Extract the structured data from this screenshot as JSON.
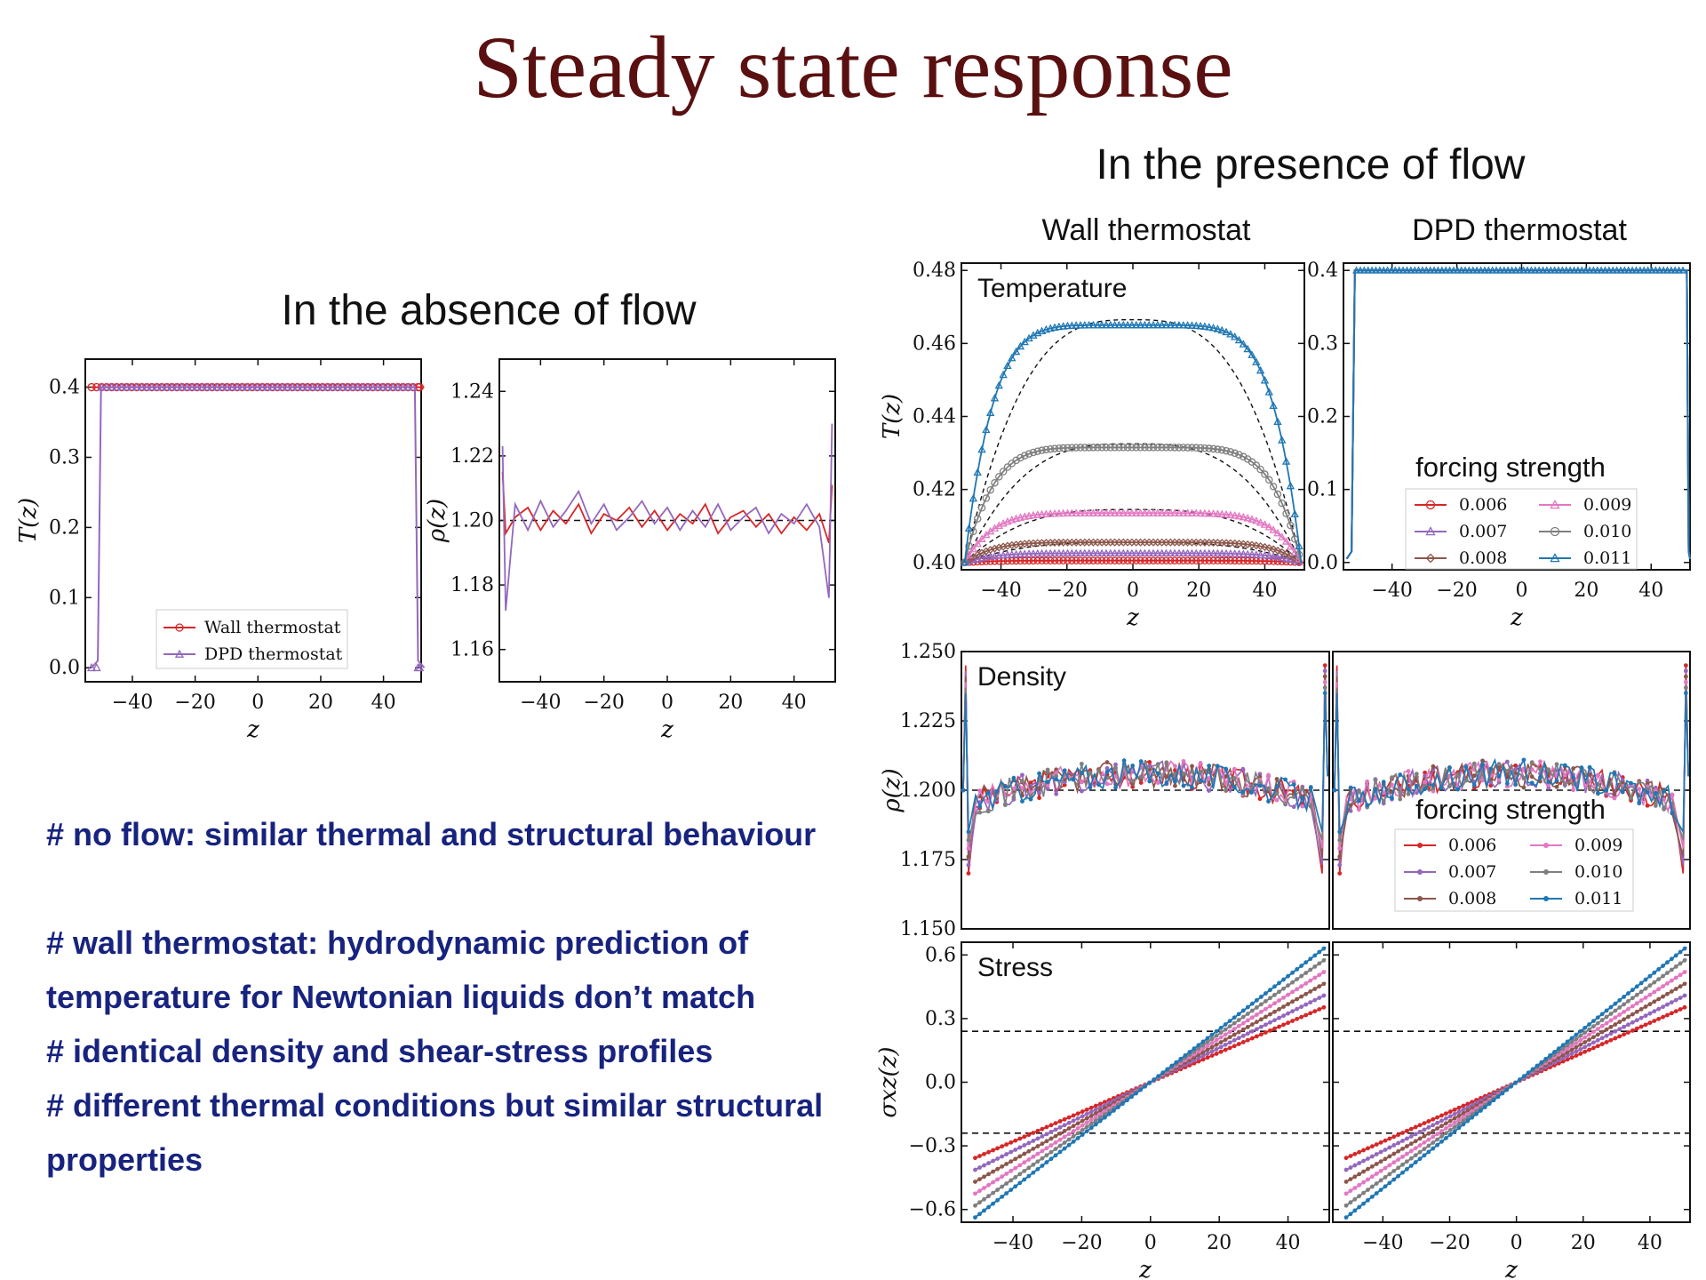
{
  "title": "Steady state response",
  "left_heading": "In the absence of flow",
  "right_heading": "In the presence of flow",
  "col_headings": {
    "wall": "Wall thermostat",
    "dpd": "DPD thermostat"
  },
  "notes": [
    "# no flow: similar thermal and structural behaviour",
    "# wall thermostat: hydrodynamic prediction of",
    "temperature for Newtonian liquids don’t match",
    "# identical density and shear-stress profiles",
    "# different thermal conditions but similar structural",
    "properties"
  ],
  "colors": {
    "title": "#5a1010",
    "notes": "#17237e",
    "series": [
      "#d62728",
      "#9467bd",
      "#8c564b",
      "#e377c2",
      "#7f7f7f",
      "#1f77b4"
    ]
  },
  "chart_data": [
    {
      "id": "noflow-temperature",
      "type": "line",
      "xlabel": "z",
      "ylabel": "T(z)",
      "xlim": [
        -55,
        52
      ],
      "ylim": [
        -0.02,
        0.44
      ],
      "xticks": [
        -40,
        -20,
        0,
        20,
        40
      ],
      "xtick_labels": [
        "−40",
        "−20",
        "0",
        "20",
        "40"
      ],
      "yticks": [
        0.0,
        0.1,
        0.2,
        0.3,
        0.4
      ],
      "ytick_labels": [
        "0.0",
        "0.1",
        "0.2",
        "0.3",
        "0.4"
      ],
      "legend": "lower-center",
      "series": [
        {
          "name": "Wall thermostat",
          "marker": "circle",
          "color": "#d62728",
          "points": [
            [
              -53,
              0.4
            ],
            [
              -51,
              0.4
            ],
            [
              0,
              0.4
            ],
            [
              51,
              0.4
            ],
            [
              53,
              0.4
            ]
          ]
        },
        {
          "name": "DPD thermostat",
          "marker": "triangle",
          "color": "#9467bd",
          "points": [
            [
              -53,
              0.0
            ],
            [
              -51,
              0.01
            ],
            [
              -50,
              0.4
            ],
            [
              0,
              0.4
            ],
            [
              50,
              0.4
            ],
            [
              51,
              0.01
            ],
            [
              53,
              0.0
            ]
          ]
        }
      ]
    },
    {
      "id": "noflow-density",
      "type": "line",
      "xlabel": "z",
      "ylabel": "ρ(z)",
      "xlim": [
        -53,
        53
      ],
      "ylim": [
        1.15,
        1.25
      ],
      "xticks": [
        -40,
        -20,
        0,
        20,
        40
      ],
      "xtick_labels": [
        "−40",
        "−20",
        "0",
        "20",
        "40"
      ],
      "yticks": [
        1.16,
        1.18,
        1.2,
        1.22,
        1.24
      ],
      "ytick_labels": [
        "1.16",
        "1.18",
        "1.20",
        "1.22",
        "1.24"
      ],
      "reference_line": 1.2,
      "series": [
        {
          "name": "Wall thermostat",
          "color": "#d62728",
          "points": [
            [
              -52,
              1.215
            ],
            [
              -51,
              1.196
            ],
            [
              -48,
              1.201
            ],
            [
              -44,
              1.204
            ],
            [
              -40,
              1.197
            ],
            [
              -36,
              1.203
            ],
            [
              -32,
              1.199
            ],
            [
              -28,
              1.205
            ],
            [
              -24,
              1.196
            ],
            [
              -20,
              1.202
            ],
            [
              -16,
              1.2
            ],
            [
              -12,
              1.204
            ],
            [
              -8,
              1.198
            ],
            [
              -4,
              1.203
            ],
            [
              0,
              1.197
            ],
            [
              4,
              1.202
            ],
            [
              8,
              1.199
            ],
            [
              12,
              1.205
            ],
            [
              16,
              1.196
            ],
            [
              20,
              1.201
            ],
            [
              24,
              1.203
            ],
            [
              28,
              1.198
            ],
            [
              32,
              1.202
            ],
            [
              36,
              1.196
            ],
            [
              40,
              1.201
            ],
            [
              44,
              1.197
            ],
            [
              48,
              1.202
            ],
            [
              51,
              1.193
            ],
            [
              52,
              1.211
            ]
          ]
        },
        {
          "name": "DPD thermostat",
          "color": "#9467bd",
          "points": [
            [
              -52,
              1.223
            ],
            [
              -51,
              1.172
            ],
            [
              -48,
              1.205
            ],
            [
              -44,
              1.197
            ],
            [
              -40,
              1.206
            ],
            [
              -36,
              1.198
            ],
            [
              -32,
              1.203
            ],
            [
              -28,
              1.209
            ],
            [
              -24,
              1.199
            ],
            [
              -20,
              1.205
            ],
            [
              -16,
              1.197
            ],
            [
              -12,
              1.201
            ],
            [
              -8,
              1.206
            ],
            [
              -4,
              1.199
            ],
            [
              0,
              1.204
            ],
            [
              4,
              1.197
            ],
            [
              8,
              1.203
            ],
            [
              12,
              1.198
            ],
            [
              16,
              1.205
            ],
            [
              20,
              1.197
            ],
            [
              24,
              1.201
            ],
            [
              28,
              1.204
            ],
            [
              32,
              1.196
            ],
            [
              36,
              1.202
            ],
            [
              40,
              1.199
            ],
            [
              44,
              1.205
            ],
            [
              48,
              1.198
            ],
            [
              51,
              1.176
            ],
            [
              52,
              1.23
            ]
          ]
        }
      ]
    },
    {
      "id": "flow-wall-temperature",
      "type": "line",
      "panel_label": "Temperature",
      "xlabel": "z",
      "ylabel": "T(z)",
      "xlim": [
        -52,
        52
      ],
      "ylim": [
        0.398,
        0.482
      ],
      "xticks": [
        -40,
        -20,
        0,
        20,
        40
      ],
      "xtick_labels": [
        "−40",
        "−20",
        "0",
        "20",
        "40"
      ],
      "yticks": [
        0.4,
        0.42,
        0.44,
        0.46,
        0.48
      ],
      "ytick_labels": [
        "0.40",
        "0.42",
        "0.44",
        "0.46",
        "0.48"
      ],
      "series": [
        {
          "name": "0.006",
          "color": "#d62728",
          "plateau": 0.4005
        },
        {
          "name": "0.007",
          "color": "#9467bd",
          "plateau": 0.4025
        },
        {
          "name": "0.008",
          "color": "#8c564b",
          "plateau": 0.4055
        },
        {
          "name": "0.009",
          "color": "#e377c2",
          "plateau": 0.4135
        },
        {
          "name": "0.010",
          "color": "#7f7f7f",
          "plateau": 0.4315
        },
        {
          "name": "0.011",
          "color": "#1f77b4",
          "plateau": 0.465
        }
      ],
      "prediction_peaks": [
        0.4055,
        0.4145,
        0.4325,
        0.4665
      ]
    },
    {
      "id": "flow-dpd-temperature",
      "type": "line",
      "xlabel": "z",
      "xlim": [
        -55,
        52
      ],
      "ylim": [
        -0.01,
        0.41
      ],
      "xticks": [
        -40,
        -20,
        0,
        20,
        40
      ],
      "xtick_labels": [
        "−40",
        "−20",
        "0",
        "20",
        "40"
      ],
      "yticks": [
        0.0,
        0.1,
        0.2,
        0.3,
        0.4
      ],
      "ytick_labels": [
        "0.0",
        "0.1",
        "0.2",
        "0.3",
        "0.4"
      ],
      "legend_title": "forcing strength",
      "legend": "lower-right",
      "series": [
        {
          "name": "0.006",
          "color": "#d62728"
        },
        {
          "name": "0.007",
          "color": "#9467bd"
        },
        {
          "name": "0.008",
          "color": "#8c564b"
        },
        {
          "name": "0.009",
          "color": "#e377c2"
        },
        {
          "name": "0.010",
          "color": "#7f7f7f"
        },
        {
          "name": "0.011",
          "color": "#1f77b4"
        }
      ]
    },
    {
      "id": "flow-density",
      "type": "line",
      "panel_label": "Density",
      "ylabel": "ρ(z)",
      "xlim": [
        -52,
        52
      ],
      "ylim": [
        1.15,
        1.25
      ],
      "yticks": [
        1.15,
        1.175,
        1.2,
        1.225,
        1.25
      ],
      "ytick_labels": [
        "1.150",
        "1.175",
        "1.200",
        "1.225",
        "1.250"
      ],
      "reference_line": 1.2,
      "legend_title": "forcing strength",
      "series_names": [
        "0.006",
        "0.007",
        "0.008",
        "0.009",
        "0.010",
        "0.011"
      ],
      "profile": {
        "edge_peak": 1.245,
        "dip": 1.17,
        "center": 1.206,
        "near_wall": 1.195
      }
    },
    {
      "id": "flow-stress",
      "type": "line",
      "panel_label": "Stress",
      "xlabel": "z",
      "ylabel": "σxz(z)",
      "xlim": [
        -55,
        52
      ],
      "ylim": [
        -0.66,
        0.66
      ],
      "xticks": [
        -40,
        -20,
        0,
        20,
        40
      ],
      "xtick_labels": [
        "−40",
        "−20",
        "0",
        "20",
        "40"
      ],
      "yticks": [
        -0.6,
        -0.3,
        0.0,
        0.3,
        0.6
      ],
      "ytick_labels": [
        "−0.6",
        "−0.3",
        "0.0",
        "0.3",
        "0.6"
      ],
      "reference_lines": [
        0.24,
        -0.24
      ],
      "series": [
        {
          "name": "0.006",
          "slope": 0.007
        },
        {
          "name": "0.007",
          "slope": 0.0081
        },
        {
          "name": "0.008",
          "slope": 0.0092
        },
        {
          "name": "0.009",
          "slope": 0.0103
        },
        {
          "name": "0.010",
          "slope": 0.0114
        },
        {
          "name": "0.011",
          "slope": 0.0125
        }
      ]
    }
  ]
}
